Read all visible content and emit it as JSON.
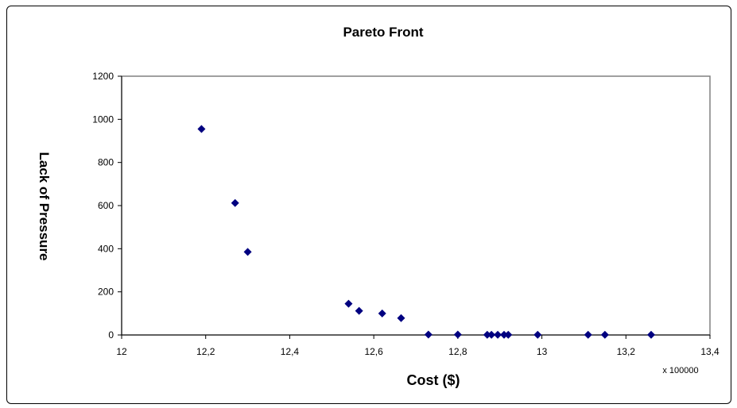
{
  "chart_data": {
    "type": "scatter",
    "title": "Pareto Front",
    "xlabel": "Cost ($)",
    "ylabel": "Lack of Pressure",
    "x_multiplier_label": "x 100000",
    "xlim": [
      12,
      13.4
    ],
    "ylim": [
      0,
      1200
    ],
    "x_ticks": [
      "12",
      "12,2",
      "12,4",
      "12,6",
      "12,8",
      "13",
      "13,2",
      "13,4"
    ],
    "y_ticks": [
      "0",
      "200",
      "400",
      "600",
      "800",
      "1000",
      "1200"
    ],
    "grid": false,
    "marker_color": "#000080",
    "points": [
      {
        "x": 12.19,
        "y": 955
      },
      {
        "x": 12.27,
        "y": 612
      },
      {
        "x": 12.3,
        "y": 385
      },
      {
        "x": 12.54,
        "y": 145
      },
      {
        "x": 12.565,
        "y": 112
      },
      {
        "x": 12.62,
        "y": 100
      },
      {
        "x": 12.665,
        "y": 78
      },
      {
        "x": 12.73,
        "y": 2
      },
      {
        "x": 12.8,
        "y": 2
      },
      {
        "x": 12.87,
        "y": 1
      },
      {
        "x": 12.88,
        "y": 1
      },
      {
        "x": 12.895,
        "y": 1
      },
      {
        "x": 12.91,
        "y": 1
      },
      {
        "x": 12.92,
        "y": 1
      },
      {
        "x": 12.99,
        "y": 1
      },
      {
        "x": 13.11,
        "y": 1
      },
      {
        "x": 13.15,
        "y": 1
      },
      {
        "x": 13.26,
        "y": 1
      }
    ]
  }
}
